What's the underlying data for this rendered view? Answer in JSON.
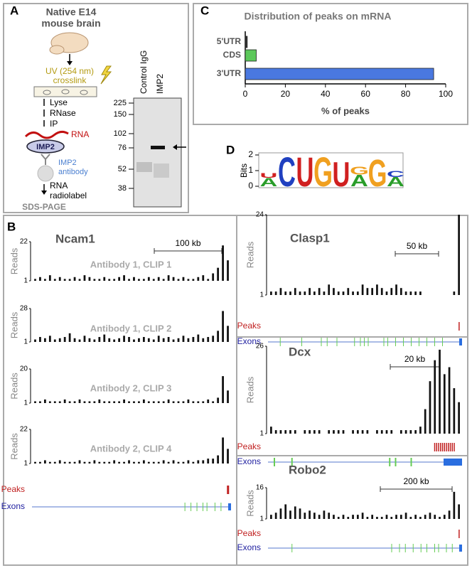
{
  "panel_a": {
    "label": "A",
    "title_lines": [
      "Native E14",
      "mouse brain"
    ],
    "uv_lines": [
      "UV (254 nm)",
      "crosslink"
    ],
    "steps": [
      "Lyse",
      "RNase",
      "IP"
    ],
    "rna": "RNA",
    "protein": "IMP2",
    "antibody_lines": [
      "IMP2",
      "antibody"
    ],
    "radiolabel_lines": [
      "RNA",
      "radiolabel"
    ],
    "gel_method": "SDS-PAGE",
    "lanes": [
      "Control IgG",
      "IMP2"
    ],
    "markers": [
      225,
      150,
      102,
      76,
      52,
      38
    ]
  },
  "chart_data": {
    "type": "bar",
    "label": "C",
    "title": "Distribution of peaks on mRNA",
    "orientation": "horizontal",
    "categories": [
      "5'UTR",
      "CDS",
      "3'UTR"
    ],
    "values": [
      1,
      5.5,
      94
    ],
    "colors": [
      "#333333",
      "#5cc85a",
      "#4a78e0"
    ],
    "xlim": [
      0,
      100
    ],
    "xticks": [
      0,
      20,
      40,
      60,
      80,
      100
    ],
    "xlabel": "% of peaks"
  },
  "panel_d": {
    "label": "D",
    "ylabel": "Bits",
    "yticks": [
      0,
      1,
      2
    ],
    "ylim": [
      0,
      2
    ],
    "columns": [
      [
        {
          "letter": "A",
          "bits": 0.55
        },
        {
          "letter": "U",
          "bits": 0.3
        }
      ],
      [
        {
          "letter": "C",
          "bits": 1.9
        }
      ],
      [
        {
          "letter": "U",
          "bits": 1.9
        }
      ],
      [
        {
          "letter": "G",
          "bits": 1.9
        }
      ],
      [
        {
          "letter": "U",
          "bits": 1.6
        }
      ],
      [
        {
          "letter": "A",
          "bits": 0.75
        },
        {
          "letter": "G",
          "bits": 0.5
        }
      ],
      [
        {
          "letter": "G",
          "bits": 1.75
        }
      ],
      [
        {
          "letter": "A",
          "bits": 0.6
        },
        {
          "letter": "C",
          "bits": 0.4
        }
      ]
    ]
  },
  "panel_b": {
    "label": "B",
    "reads_label": "Reads",
    "peaks_label": "Peaks",
    "exons_label": "Exons",
    "genes": [
      {
        "name": "Ncam1",
        "scale_bar": "100 kb",
        "tracks": [
          {
            "label": "Antibody 1, CLIP 1",
            "ylim": [
              1,
              22
            ],
            "yticks": [
              1,
              22
            ],
            "values": [
              2,
              3,
              2,
              4,
              2,
              3,
              2,
              2,
              3,
              2,
              4,
              3,
              2,
              2,
              3,
              2,
              2,
              3,
              4,
              2,
              3,
              2,
              2,
              3,
              2,
              3,
              2,
              4,
              3,
              2,
              3,
              2,
              2,
              3,
              4,
              2,
              5,
              8,
              20,
              12
            ]
          },
          {
            "label": "Antibody 1, CLIP 2",
            "ylim": [
              1,
              28
            ],
            "yticks": [
              1,
              28
            ],
            "values": [
              3,
              5,
              4,
              6,
              3,
              4,
              5,
              8,
              4,
              3,
              6,
              4,
              3,
              5,
              7,
              4,
              3,
              4,
              6,
              5,
              3,
              4,
              5,
              4,
              3,
              6,
              4,
              5,
              3,
              4,
              6,
              4,
              5,
              7,
              4,
              5,
              6,
              10,
              26,
              14
            ]
          },
          {
            "label": "Antibody 2, CLIP 3",
            "ylim": [
              1,
              20
            ],
            "yticks": [
              1,
              20
            ],
            "values": [
              2,
              2,
              3,
              2,
              2,
              2,
              3,
              2,
              2,
              3,
              2,
              2,
              2,
              3,
              2,
              2,
              2,
              2,
              3,
              2,
              2,
              2,
              3,
              2,
              2,
              2,
              2,
              3,
              2,
              2,
              2,
              3,
              2,
              2,
              2,
              3,
              2,
              4,
              16,
              8
            ]
          },
          {
            "label": "Antibody 2, CLIP 4",
            "ylim": [
              1,
              22
            ],
            "yticks": [
              1,
              22
            ],
            "values": [
              2,
              2,
              3,
              2,
              2,
              3,
              2,
              2,
              2,
              3,
              2,
              2,
              3,
              2,
              2,
              2,
              3,
              2,
              2,
              3,
              2,
              2,
              3,
              2,
              2,
              2,
              3,
              2,
              3,
              2,
              2,
              3,
              2,
              3,
              3,
              4,
              4,
              6,
              17,
              10
            ]
          }
        ]
      },
      {
        "name": "Clasp1",
        "scale_bar": "50 kb",
        "tracks": [
          {
            "ylim": [
              1,
              24
            ],
            "yticks": [
              1,
              24
            ],
            "values": [
              2,
              2,
              3,
              2,
              2,
              3,
              2,
              2,
              3,
              2,
              3,
              2,
              4,
              3,
              2,
              2,
              3,
              2,
              2,
              4,
              3,
              3,
              4,
              3,
              2,
              3,
              4,
              3,
              2,
              2,
              2,
              2,
              1,
              1,
              1,
              1,
              1,
              1,
              2,
              24
            ]
          }
        ]
      },
      {
        "name": "Dcx",
        "scale_bar": "20 kb",
        "tracks": [
          {
            "ylim": [
              1,
              26
            ],
            "yticks": [
              1,
              26
            ],
            "values": [
              3,
              2,
              2,
              2,
              2,
              2,
              1,
              2,
              2,
              2,
              2,
              1,
              2,
              2,
              2,
              2,
              1,
              2,
              2,
              2,
              2,
              1,
              2,
              2,
              2,
              2,
              1,
              2,
              2,
              2,
              2,
              3,
              8,
              16,
              22,
              25,
              18,
              20,
              14,
              10
            ]
          }
        ]
      },
      {
        "name": "Robo2",
        "scale_bar": "200 kb",
        "tracks": [
          {
            "ylim": [
              1,
              16
            ],
            "yticks": [
              1,
              16
            ],
            "values": [
              3,
              4,
              6,
              8,
              5,
              7,
              6,
              4,
              5,
              4,
              3,
              5,
              4,
              3,
              2,
              3,
              2,
              3,
              3,
              4,
              2,
              3,
              2,
              2,
              3,
              2,
              3,
              3,
              4,
              2,
              3,
              2,
              3,
              4,
              3,
              2,
              3,
              5,
              14,
              8
            ]
          }
        ]
      }
    ]
  }
}
